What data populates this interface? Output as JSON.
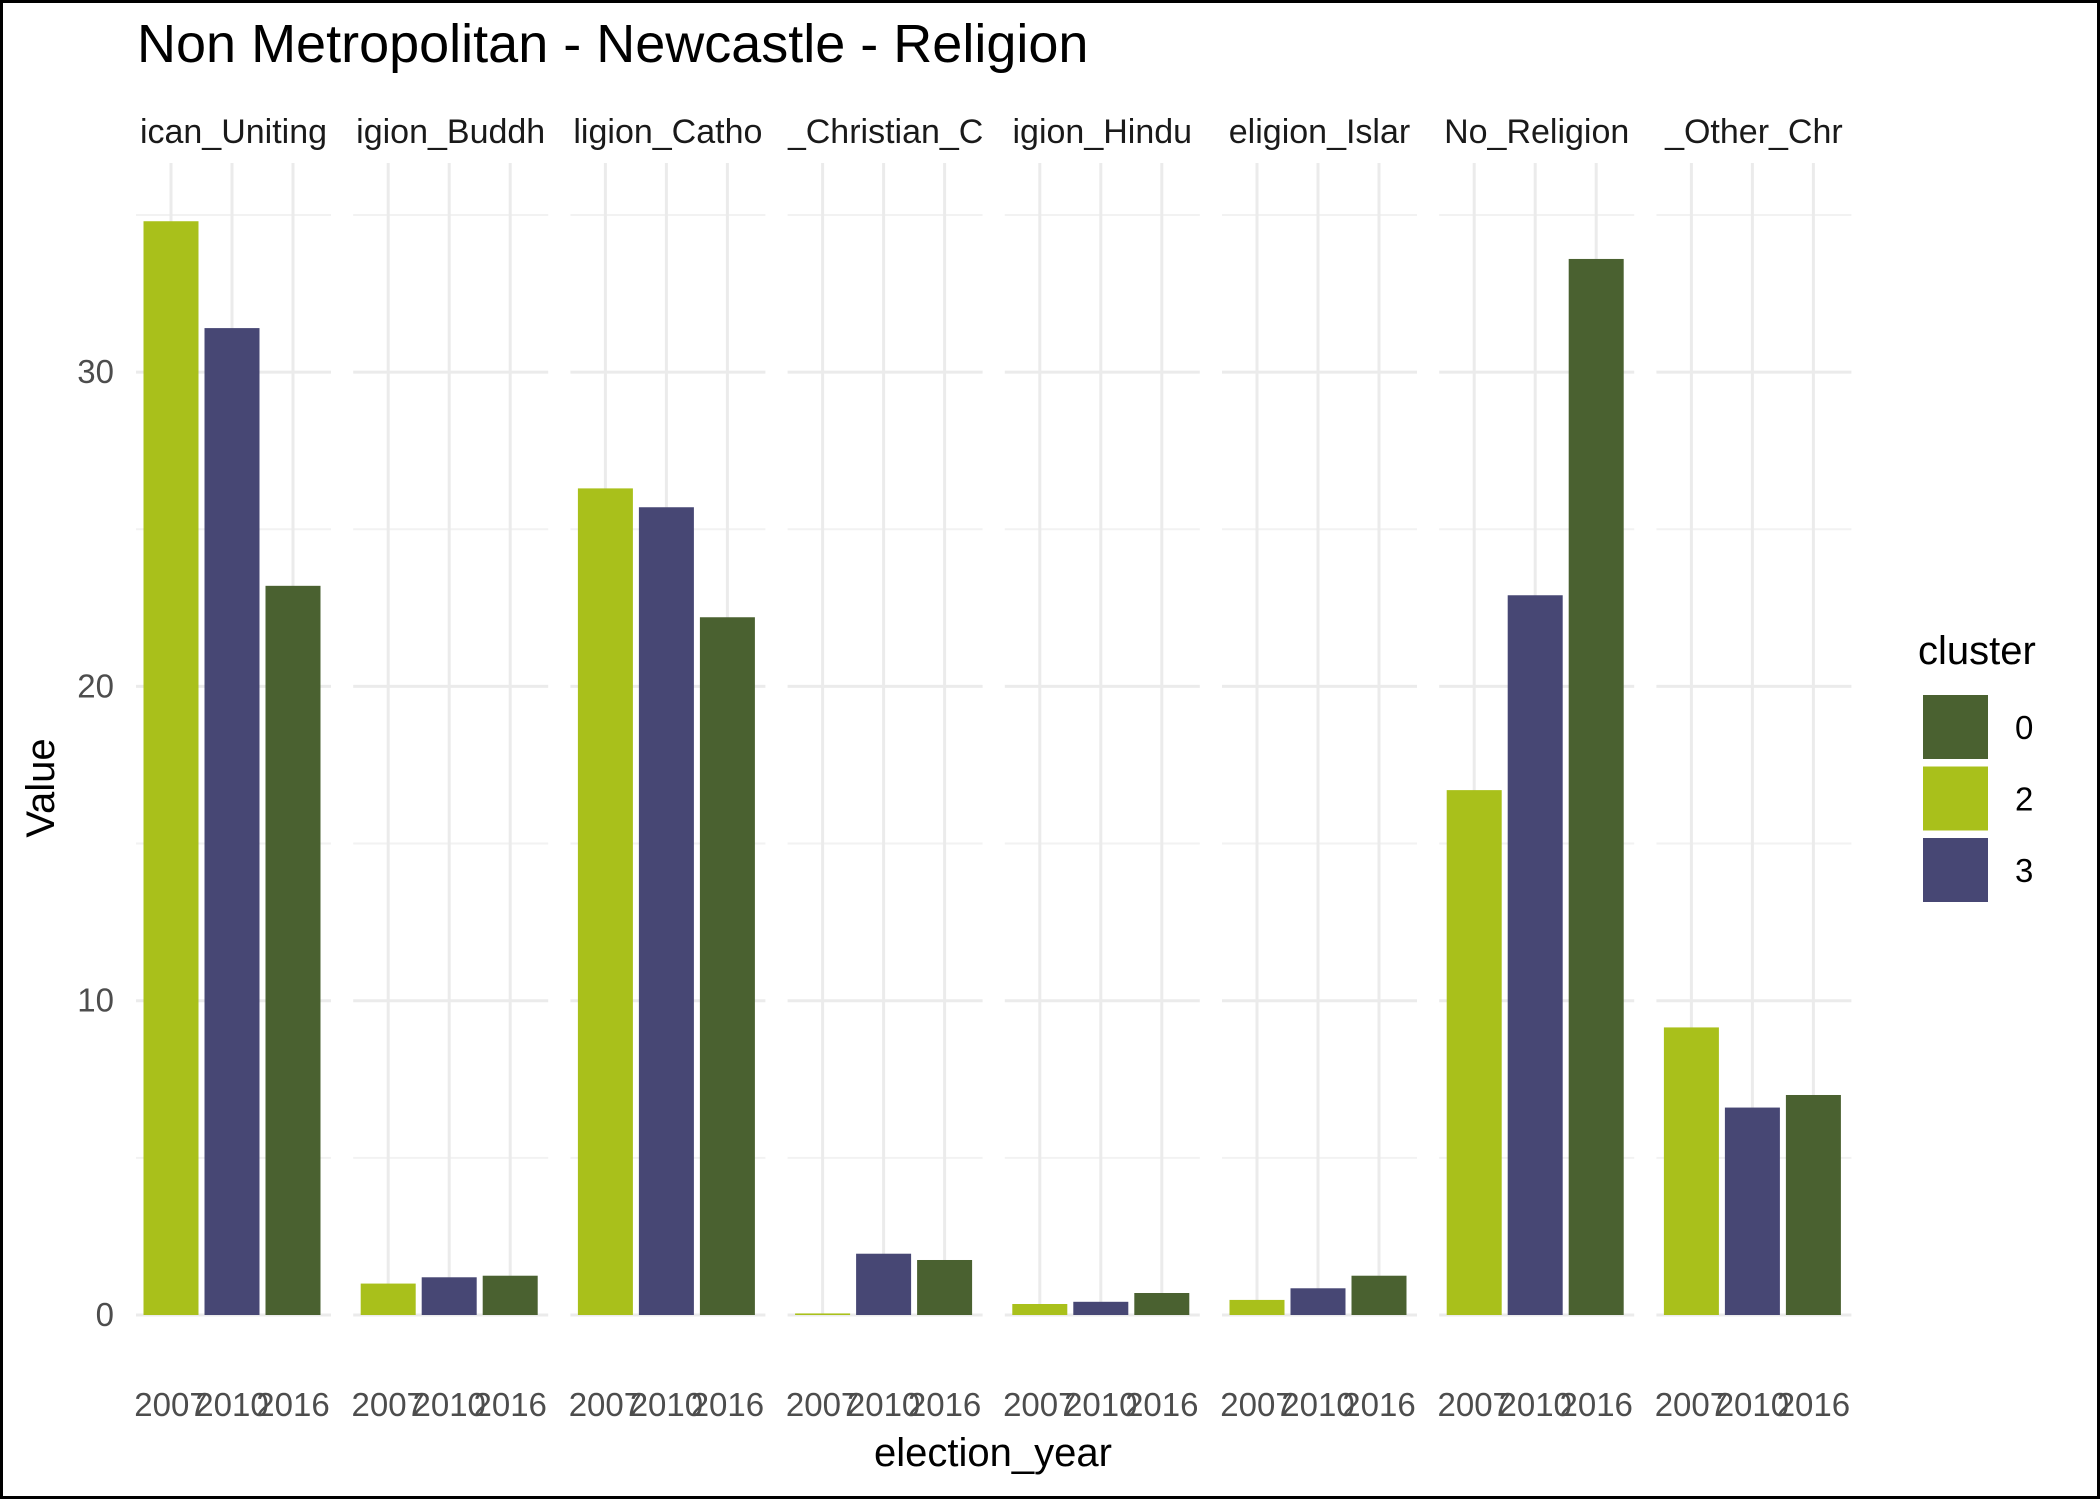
{
  "chart_data": {
    "type": "bar",
    "title": "Non Metropolitan - Newcastle - Religion",
    "xlabel": "election_year",
    "ylabel": "Value",
    "ylim": [
      0,
      35
    ],
    "y_ticks": [
      "0",
      "10",
      "20",
      "30"
    ],
    "grid": true,
    "legend": {
      "title": "cluster",
      "position": "right",
      "entries": [
        {
          "label": "0",
          "color": "#4a6130"
        },
        {
          "label": "2",
          "color": "#a9c01b"
        },
        {
          "label": "3",
          "color": "#474774"
        }
      ]
    },
    "x_categories": [
      "2007",
      "2010",
      "2016"
    ],
    "x_tick_labels": [
      "2007",
      "2010",
      "2016"
    ],
    "bar_clusters": [
      "2",
      "3",
      "0"
    ],
    "facets": [
      {
        "label": "ican_Uniting",
        "values": [
          34.8,
          31.4,
          23.2
        ]
      },
      {
        "label": "igion_Buddh",
        "values": [
          1.0,
          1.2,
          1.25
        ]
      },
      {
        "label": "ligion_Catho",
        "values": [
          26.3,
          25.7,
          22.2
        ]
      },
      {
        "label": "_Christian_C",
        "values": [
          0.05,
          1.95,
          1.75
        ]
      },
      {
        "label": "igion_Hindu",
        "values": [
          0.35,
          0.42,
          0.7
        ]
      },
      {
        "label": "eligion_Islar",
        "values": [
          0.48,
          0.85,
          1.25
        ]
      },
      {
        "label": "No_Religion",
        "values": [
          16.7,
          22.9,
          33.6
        ]
      },
      {
        "label": "_Other_Chr",
        "values": [
          9.15,
          6.6,
          7.0
        ]
      }
    ]
  }
}
